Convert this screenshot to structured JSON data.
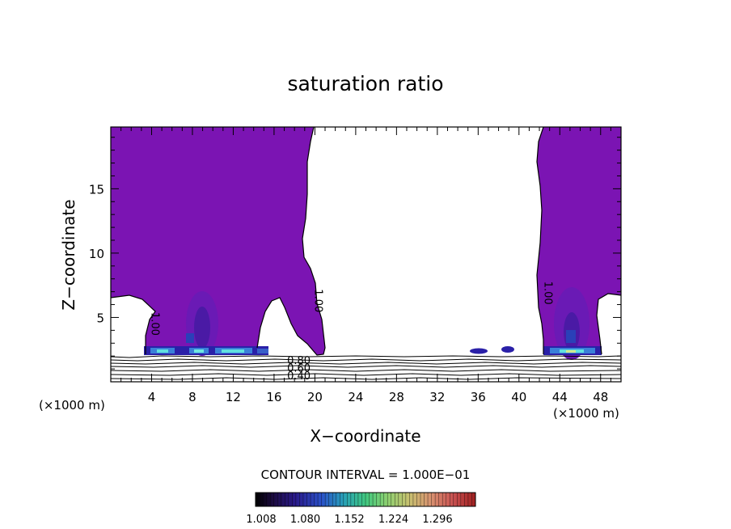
{
  "chart_data": {
    "type": "contour",
    "title": "saturation ratio",
    "xlabel": "X−coordinate",
    "ylabel": "Z−coordinate",
    "x_unit": "(×1000 m)",
    "z_unit": "(×1000 m)",
    "xlim": [
      0,
      50
    ],
    "ylim": [
      0,
      19.8
    ],
    "x_ticks": [
      4,
      8,
      12,
      16,
      20,
      24,
      28,
      32,
      36,
      40,
      44,
      48
    ],
    "x_tick_labels": [
      "4",
      "8",
      "12",
      "16",
      "20",
      "24",
      "28",
      "32",
      "36",
      "40",
      "44",
      "48"
    ],
    "y_ticks": [
      5,
      10,
      15
    ],
    "y_tick_labels": [
      "5",
      "10",
      "15"
    ],
    "contour_interval_text": "CONTOUR INTERVAL = 1.000E−01",
    "contour_labels": [
      {
        "text": "1.00",
        "x": 4.0,
        "z": 4.5
      },
      {
        "text": "1.00",
        "x": 20.0,
        "z": 6.3
      },
      {
        "text": "1.00",
        "x": 42.5,
        "z": 6.9
      },
      {
        "text": "0.80",
        "x": 17.0,
        "z": 1.7
      },
      {
        "text": "0.60",
        "x": 17.0,
        "z": 1.1
      },
      {
        "text": "0.40",
        "x": 17.0,
        "z": 0.5
      }
    ],
    "colorbar": {
      "tick_labels": [
        "1.008",
        "1.080",
        "1.152",
        "1.224",
        "1.296"
      ],
      "colors": [
        "#000000",
        "#1a0a3a",
        "#2a1a7a",
        "#2a3ab0",
        "#2a70d0",
        "#2aa0c0",
        "#30c0a0",
        "#40d080",
        "#70d070",
        "#a0d070",
        "#c0c070",
        "#d0a070",
        "#d07060",
        "#c04040",
        "#a02020"
      ]
    },
    "fill_color": "#7b14b3",
    "regions": {
      "left_plume_x": [
        0,
        20.8
      ],
      "right_plume_x": [
        42.0,
        50
      ]
    }
  }
}
